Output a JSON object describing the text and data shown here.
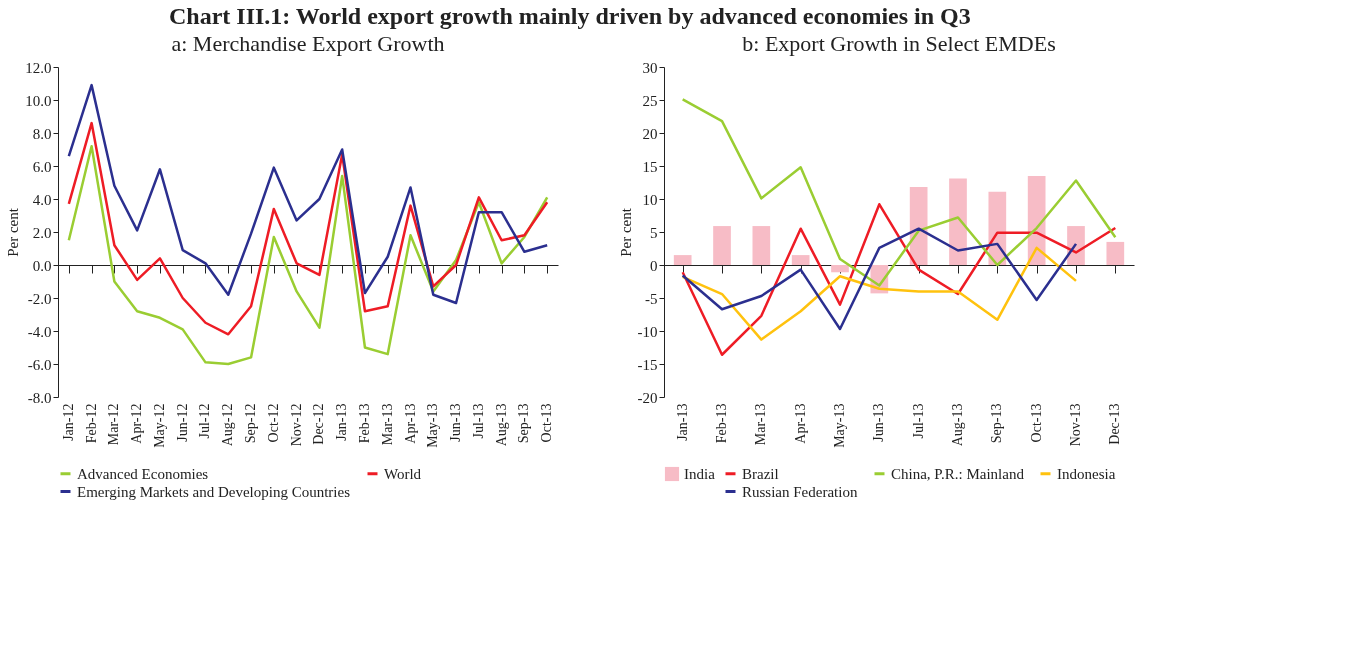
{
  "chart_data": [
    {
      "type": "line",
      "title": "a: Merchandise Export Growth",
      "annotations": [
        "Chart III.1: World export growth mainly driven by advanced economies in Q3"
      ],
      "ylabel": "Per cent",
      "categories": [
        "Jan-12",
        "Feb-12",
        "Mar-12",
        "Apr-12",
        "May-12",
        "Jun-12",
        "Jul-12",
        "Aug-12",
        "Sep-12",
        "Oct-12",
        "Nov-12",
        "Dec-12",
        "Jan-13",
        "Feb-13",
        "Mar-13",
        "Apr-13",
        "May-13",
        "Jun-13",
        "Jul-13",
        "Aug-13",
        "Sep-13",
        "Oct-13"
      ],
      "series": [
        {
          "name": "Advanced Economies",
          "color": "#9acd32",
          "values": [
            1.5,
            7.2,
            -1.0,
            -2.8,
            -3.2,
            -3.9,
            -5.9,
            -6.0,
            -5.6,
            1.7,
            -1.6,
            -3.8,
            5.4,
            -5.0,
            -5.4,
            1.8,
            -1.6,
            0.3,
            3.8,
            0.1,
            1.7,
            4.1
          ]
        },
        {
          "name": "World",
          "color": "#ee1c25",
          "values": [
            3.7,
            8.6,
            1.2,
            -0.9,
            0.4,
            -2.0,
            -3.5,
            -4.2,
            -2.5,
            3.4,
            0.1,
            -0.6,
            6.7,
            -2.8,
            -2.5,
            3.6,
            -1.3,
            0.0,
            4.1,
            1.5,
            1.8,
            3.8
          ]
        },
        {
          "name": "Emerging Markets and Developing Countries",
          "color": "#2b2f8f",
          "values": [
            6.6,
            10.9,
            4.8,
            2.1,
            5.8,
            0.9,
            0.1,
            -1.8,
            1.9,
            5.9,
            2.7,
            4.0,
            7.0,
            -1.7,
            0.5,
            4.7,
            -1.8,
            -2.3,
            3.2,
            3.2,
            0.8,
            1.2
          ]
        }
      ],
      "ylim": [
        -8,
        12
      ],
      "yticks": [
        {
          "value": -8,
          "label": "-8.0"
        },
        {
          "value": -6,
          "label": "-6.0"
        },
        {
          "value": -4,
          "label": "-4.0"
        },
        {
          "value": -2,
          "label": "-2.0"
        },
        {
          "value": 0,
          "label": "0.0"
        },
        {
          "value": 2,
          "label": "2.0"
        },
        {
          "value": 4,
          "label": "4.0"
        },
        {
          "value": 6,
          "label": "6.0"
        },
        {
          "value": 8,
          "label": "8.0"
        },
        {
          "value": 10,
          "label": "10.0"
        },
        {
          "value": 12,
          "label": "12.0"
        }
      ],
      "legend": "bottom"
    },
    {
      "type": "line",
      "title": "b: Export Growth in Select EMDEs",
      "ylabel": "Per cent",
      "categories": [
        "Jan-13",
        "Feb-13",
        "Mar-13",
        "Apr-13",
        "May-13",
        "Jun-13",
        "Jul-13",
        "Aug-13",
        "Sep-13",
        "Oct-13",
        "Nov-13",
        "Dec-13"
      ],
      "series": [
        {
          "name": "India",
          "type": "bar",
          "color": "#f7bcc6",
          "values": [
            1.5,
            5.9,
            5.9,
            1.5,
            -1.1,
            -4.3,
            11.8,
            13.1,
            11.1,
            13.5,
            5.9,
            3.5
          ]
        },
        {
          "name": "Brazil",
          "color": "#ee1c25",
          "values": [
            -1.1,
            -13.6,
            -7.7,
            5.5,
            -6.0,
            9.2,
            -0.7,
            -4.4,
            4.9,
            4.9,
            1.9,
            5.6
          ]
        },
        {
          "name": "China, P.R.: Mainland",
          "color": "#9acd32",
          "values": [
            25.1,
            21.8,
            10.1,
            14.8,
            0.9,
            -3.1,
            5.2,
            7.2,
            0.0,
            5.6,
            12.8,
            4.2
          ]
        },
        {
          "name": "Indonesia",
          "color": "#ffc20e",
          "values": [
            -1.8,
            -4.4,
            -11.3,
            -7.0,
            -1.7,
            -3.6,
            -4.0,
            -4.0,
            -8.3,
            2.6,
            -2.4,
            null
          ]
        },
        {
          "name": "Russian Federation",
          "color": "#2b2f8f",
          "values": [
            -1.6,
            -6.7,
            -4.7,
            -0.7,
            -9.7,
            2.6,
            5.5,
            2.2,
            3.2,
            -5.3,
            3.2,
            null
          ]
        }
      ],
      "ylim": [
        -20,
        30
      ],
      "yticks": [
        -20,
        -15,
        -10,
        -5,
        0,
        5,
        10,
        15,
        20,
        25,
        30
      ],
      "legend": "bottom"
    }
  ]
}
